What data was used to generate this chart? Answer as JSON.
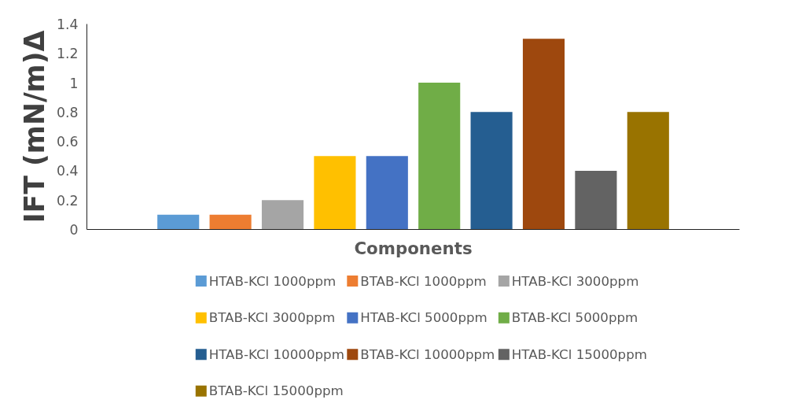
{
  "chart_data": {
    "type": "bar",
    "xlabel": "Components",
    "ylabel": "IFT (mN/m)Δ",
    "categories": [
      null
    ],
    "series": [
      {
        "name": "HTAB-KCl 1000ppm",
        "color": "#5b9bd5",
        "values": [
          0.1
        ]
      },
      {
        "name": "BTAB-KCl 1000ppm",
        "color": "#ed7d31",
        "values": [
          0.1
        ]
      },
      {
        "name": "HTAB-KCl 3000ppm",
        "color": "#a5a5a5",
        "values": [
          0.2
        ]
      },
      {
        "name": "BTAB-KCl 3000ppm",
        "color": "#ffc000",
        "values": [
          0.5
        ]
      },
      {
        "name": "HTAB-KCl 5000ppm",
        "color": "#4472c4",
        "values": [
          0.5
        ]
      },
      {
        "name": "BTAB-KCl 5000ppm",
        "color": "#70ad47",
        "values": [
          1.0
        ]
      },
      {
        "name": "HTAB-KCl 10000ppm",
        "color": "#255e91",
        "values": [
          0.8
        ]
      },
      {
        "name": "BTAB-KCl 10000ppm",
        "color": "#9e480e",
        "values": [
          1.3
        ]
      },
      {
        "name": "HTAB-KCl 15000ppm",
        "color": "#636363",
        "values": [
          0.4
        ]
      },
      {
        "name": "BTAB-KCl 15000ppm",
        "color": "#997300",
        "values": [
          0.8
        ]
      }
    ],
    "ylim": [
      0,
      1.4
    ],
    "yticks": [
      0,
      0.2,
      0.4,
      0.6,
      0.8,
      1,
      1.2,
      1.4
    ],
    "grid": false,
    "legend": "bottom",
    "tick_labels": "y"
  }
}
